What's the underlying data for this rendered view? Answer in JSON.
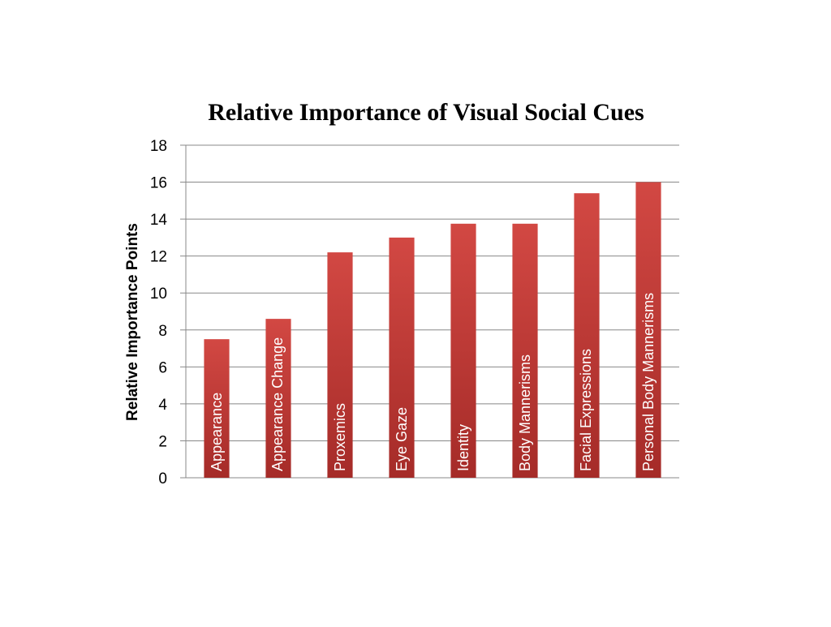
{
  "chart_data": {
    "type": "bar",
    "title": "Relative Importance of Visual Social Cues",
    "xlabel": "",
    "ylabel": "Relative Importance Points",
    "ylim": [
      0,
      18
    ],
    "yticks": [
      0,
      2,
      4,
      6,
      8,
      10,
      12,
      14,
      16,
      18
    ],
    "grid": true,
    "legend": "none",
    "bar_labels_inside": true,
    "categories": [
      "Appearance",
      "Appearance Change",
      "Proxemics",
      "Eye Gaze",
      "Identity",
      "Body Mannerisms",
      "Facial Expressions",
      "Personal Body Mannerisms"
    ],
    "values": [
      7.5,
      8.6,
      12.2,
      13.0,
      13.75,
      13.75,
      15.4,
      16.0
    ],
    "colors": {
      "bar_top": "#d24843",
      "bar_bottom": "#a52b28",
      "grid": "#888888",
      "axis": "#888888",
      "label_text": "#ffffff"
    }
  }
}
